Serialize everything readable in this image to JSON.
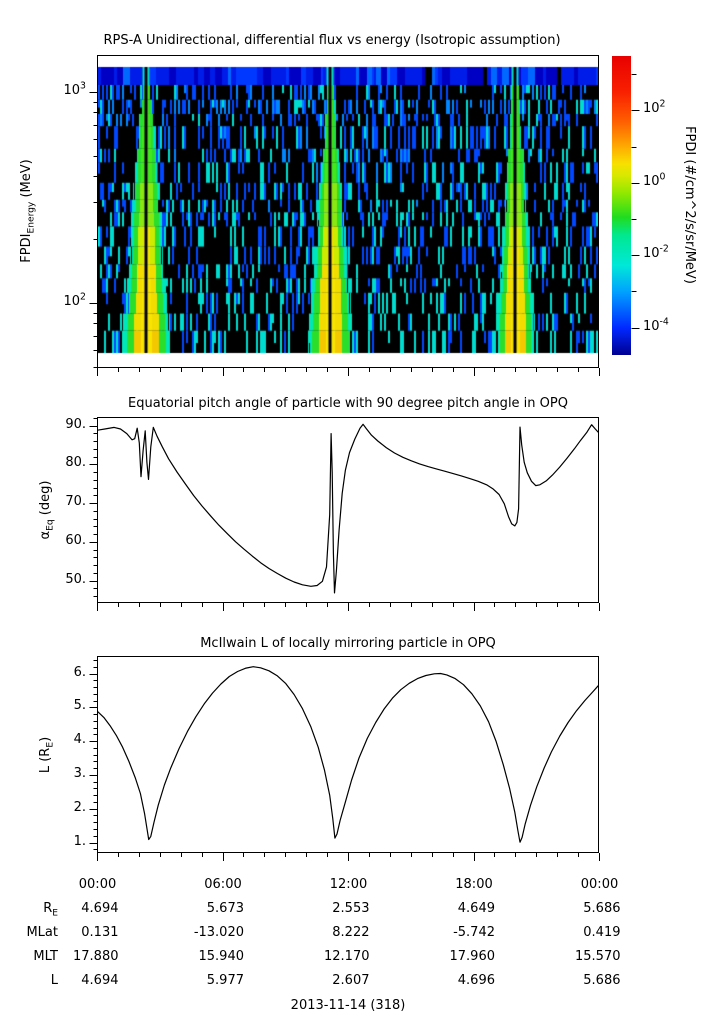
{
  "figure": {
    "date_caption": "2013-11-14 (318)"
  },
  "colors": {
    "background": "#ffffff",
    "axis": "#000000",
    "curve": "#000000",
    "spectrogram_background": "#000000",
    "speckle_palette": [
      "#0047ff",
      "#0086ff",
      "#00ddd0"
    ],
    "blue_band_palette": [
      "#0000c4",
      "#001ce8",
      "#0038ff",
      "#0068ff"
    ],
    "plume_core_by_depth": [
      "#44e61e",
      "#8ae812",
      "#cdeb00",
      "#f2dc00",
      "#f4c800"
    ],
    "plume_mid": "#2ade2a",
    "plume_fringe": "#00e6bb",
    "colorbar_stops_bottom_to_top": [
      "#000090",
      "#0028ff",
      "#00a0ff",
      "#00e8d8",
      "#00e890",
      "#20dc20",
      "#90e800",
      "#d8e800",
      "#f8e000",
      "#ffa800",
      "#ff6000",
      "#f82000",
      "#e80000"
    ]
  },
  "labels": {
    "top_ylabel_parts": [
      {
        "t": "FPDI"
      },
      {
        "sub": "Energy"
      },
      {
        "t": " (MeV)"
      }
    ],
    "mid_ylabel_parts": [
      {
        "t": "α"
      },
      {
        "sub": "Eq"
      },
      {
        "t": " (deg)"
      }
    ],
    "bot_ylabel_parts": [
      {
        "t": "L (R"
      },
      {
        "sub": "E"
      },
      {
        "t": ")"
      }
    ],
    "cbar_label": "FPDI (#/cm^2/s/sr/MeV)"
  },
  "xaxis": {
    "tick_labels": [
      "00:00",
      "06:00",
      "12:00",
      "18:00",
      "00:00"
    ],
    "tick_hours": [
      0,
      6,
      12,
      18,
      24
    ],
    "minor_every_hours": 1,
    "range_hours": [
      0,
      24
    ]
  },
  "table": {
    "rows": [
      {
        "label_parts": [
          {
            "t": "R"
          },
          {
            "sub": "E"
          }
        ],
        "values": [
          "4.694",
          "5.673",
          "2.553",
          "4.649",
          "5.686"
        ]
      },
      {
        "label_parts": [
          {
            "t": "MLat"
          }
        ],
        "values": [
          "0.131",
          "-13.020",
          "8.222",
          "-5.742",
          "0.419"
        ]
      },
      {
        "label_parts": [
          {
            "t": "MLT"
          }
        ],
        "values": [
          "17.880",
          "15.940",
          "12.170",
          "17.960",
          "15.570"
        ]
      },
      {
        "label_parts": [
          {
            "t": "L"
          }
        ],
        "values": [
          "4.694",
          "5.977",
          "2.607",
          "4.696",
          "5.686"
        ]
      }
    ],
    "caption": "2013-11-14 (318)"
  },
  "chart_data": [
    {
      "type": "heatmap",
      "title": "RPS-A Unidirectional, differential flux vs energy (Isotropic assumption)",
      "ylabel": "FPDI_Energy (MeV)",
      "yscale": "log",
      "ylim_MeV": [
        49,
        1500
      ],
      "ytick_values": [
        1000,
        100
      ],
      "ytick_labels": [
        "10^3",
        "10^2"
      ],
      "xlim_hours": [
        0,
        24
      ],
      "colorbar": {
        "label": "FPDI (#/cm^2/s/sr/MeV)",
        "tick_exponents": [
          3,
          2,
          1,
          0,
          -1,
          -2,
          -3,
          -4
        ],
        "labeled_exponents": [
          2,
          0,
          -2,
          -4
        ],
        "tick_labels": [
          "10^2",
          "10^0",
          "10^-2",
          "10^-4"
        ],
        "value_range_exponents": [
          -4.8,
          3.5
        ]
      },
      "features": {
        "description": "black background with sparse vertical blue/cyan dashes; three bright flux plumes widening toward low energy with yellow cores and a narrow black data-gap at each center (perigee passes); solid blue band at top energies; white bands at extreme top and bottom energies",
        "top_white_band_energy_MeV": [
          1250,
          1500
        ],
        "blue_band_energy_MeV": [
          1000,
          1250
        ],
        "bottom_white_band_energy_MeV": [
          49,
          58
        ],
        "plume_centers_hours": [
          2.3,
          11.15,
          20.0
        ],
        "plume_halfwidth_hours_top": [
          0.21,
          0.14,
          0.17
        ],
        "plume_halfwidth_hours_bottom": [
          1.2,
          1.15,
          1.0
        ],
        "energy_rows": 16
      }
    },
    {
      "type": "line",
      "title": "Equatorial pitch angle of particle with 90 degree pitch angle in OPQ",
      "ylabel": "α_Eq (deg)",
      "ylim": [
        43.5,
        92
      ],
      "yticks": [
        90,
        80,
        70,
        60,
        50
      ],
      "ytick_labels": [
        "90.",
        "80.",
        "70.",
        "60.",
        "50."
      ],
      "ytick_minor_step": 2,
      "points": [
        [
          0,
          88.8
        ],
        [
          0.35,
          89.1
        ],
        [
          0.8,
          89.5
        ],
        [
          1.1,
          89.1
        ],
        [
          1.4,
          87.9
        ],
        [
          1.65,
          86.3
        ],
        [
          1.78,
          86.6
        ],
        [
          1.9,
          89.3
        ],
        [
          2.0,
          85.5
        ],
        [
          2.08,
          76.8
        ],
        [
          2.18,
          83.5
        ],
        [
          2.28,
          88.6
        ],
        [
          2.36,
          80.5
        ],
        [
          2.44,
          76.1
        ],
        [
          2.55,
          84.5
        ],
        [
          2.67,
          89.5
        ],
        [
          2.85,
          87.2
        ],
        [
          3.1,
          84.5
        ],
        [
          3.4,
          81.4
        ],
        [
          3.8,
          78.0
        ],
        [
          4.2,
          74.9
        ],
        [
          4.6,
          71.9
        ],
        [
          5.0,
          69.2
        ],
        [
          5.4,
          66.7
        ],
        [
          5.8,
          64.3
        ],
        [
          6.2,
          62.1
        ],
        [
          6.6,
          60.0
        ],
        [
          7.0,
          58.1
        ],
        [
          7.4,
          56.3
        ],
        [
          7.8,
          54.6
        ],
        [
          8.2,
          53.1
        ],
        [
          8.6,
          51.8
        ],
        [
          9.0,
          50.6
        ],
        [
          9.4,
          49.6
        ],
        [
          9.8,
          48.9
        ],
        [
          10.2,
          48.5
        ],
        [
          10.5,
          48.7
        ],
        [
          10.75,
          49.8
        ],
        [
          10.95,
          53.5
        ],
        [
          11.1,
          67
        ],
        [
          11.17,
          87.9
        ],
        [
          11.22,
          78
        ],
        [
          11.28,
          57
        ],
        [
          11.33,
          46.8
        ],
        [
          11.42,
          52.5
        ],
        [
          11.55,
          63
        ],
        [
          11.7,
          72.5
        ],
        [
          11.85,
          78.5
        ],
        [
          12.05,
          83
        ],
        [
          12.3,
          86.5
        ],
        [
          12.55,
          89.3
        ],
        [
          12.7,
          90.3
        ],
        [
          12.85,
          89.2
        ],
        [
          13.1,
          87.5
        ],
        [
          13.4,
          86.0
        ],
        [
          13.8,
          84.3
        ],
        [
          14.2,
          82.9
        ],
        [
          14.6,
          81.8
        ],
        [
          15.0,
          80.9
        ],
        [
          15.4,
          80.1
        ],
        [
          15.8,
          79.4
        ],
        [
          16.2,
          78.8
        ],
        [
          16.6,
          78.2
        ],
        [
          17.0,
          77.6
        ],
        [
          17.4,
          77.0
        ],
        [
          17.8,
          76.3
        ],
        [
          18.2,
          75.6
        ],
        [
          18.6,
          74.7
        ],
        [
          18.9,
          73.7
        ],
        [
          19.2,
          72.2
        ],
        [
          19.45,
          69.8
        ],
        [
          19.65,
          66.5
        ],
        [
          19.8,
          64.6
        ],
        [
          19.95,
          64.1
        ],
        [
          20.05,
          65.0
        ],
        [
          20.13,
          68.5
        ],
        [
          20.2,
          89.6
        ],
        [
          20.28,
          85
        ],
        [
          20.4,
          80.5
        ],
        [
          20.55,
          77.8
        ],
        [
          20.75,
          75.6
        ],
        [
          20.95,
          74.5
        ],
        [
          21.15,
          74.7
        ],
        [
          21.45,
          75.7
        ],
        [
          21.75,
          77.2
        ],
        [
          22.1,
          79.3
        ],
        [
          22.45,
          81.6
        ],
        [
          22.8,
          84.0
        ],
        [
          23.1,
          86.2
        ],
        [
          23.4,
          88.3
        ],
        [
          23.62,
          90.2
        ],
        [
          23.8,
          89.1
        ],
        [
          24,
          87.9
        ]
      ]
    },
    {
      "type": "line",
      "title": "McIlwain L of locally mirroring particle in OPQ",
      "ylabel": "L (R_E)",
      "ylim": [
        0.68,
        6.5
      ],
      "yticks": [
        6,
        5,
        4,
        3,
        2,
        1
      ],
      "ytick_labels": [
        "6.",
        "5.",
        "4.",
        "3.",
        "2.",
        "1."
      ],
      "ytick_minor_step": 0.2,
      "points": [
        [
          0,
          4.88
        ],
        [
          0.3,
          4.7
        ],
        [
          0.6,
          4.46
        ],
        [
          0.9,
          4.17
        ],
        [
          1.2,
          3.82
        ],
        [
          1.5,
          3.4
        ],
        [
          1.8,
          2.92
        ],
        [
          2.05,
          2.45
        ],
        [
          2.25,
          1.85
        ],
        [
          2.38,
          1.35
        ],
        [
          2.45,
          1.09
        ],
        [
          2.55,
          1.18
        ],
        [
          2.7,
          1.6
        ],
        [
          2.9,
          2.1
        ],
        [
          3.2,
          2.7
        ],
        [
          3.5,
          3.2
        ],
        [
          3.9,
          3.78
        ],
        [
          4.3,
          4.28
        ],
        [
          4.7,
          4.72
        ],
        [
          5.1,
          5.1
        ],
        [
          5.5,
          5.42
        ],
        [
          5.9,
          5.69
        ],
        [
          6.3,
          5.91
        ],
        [
          6.7,
          6.06
        ],
        [
          7.1,
          6.16
        ],
        [
          7.45,
          6.2
        ],
        [
          7.8,
          6.17
        ],
        [
          8.2,
          6.08
        ],
        [
          8.6,
          5.93
        ],
        [
          9.0,
          5.7
        ],
        [
          9.4,
          5.38
        ],
        [
          9.8,
          4.96
        ],
        [
          10.2,
          4.42
        ],
        [
          10.55,
          3.82
        ],
        [
          10.85,
          3.15
        ],
        [
          11.1,
          2.4
        ],
        [
          11.25,
          1.7
        ],
        [
          11.35,
          1.13
        ],
        [
          11.45,
          1.25
        ],
        [
          11.6,
          1.65
        ],
        [
          11.85,
          2.2
        ],
        [
          12.15,
          2.85
        ],
        [
          12.5,
          3.5
        ],
        [
          12.9,
          4.08
        ],
        [
          13.3,
          4.55
        ],
        [
          13.7,
          4.95
        ],
        [
          14.1,
          5.27
        ],
        [
          14.5,
          5.52
        ],
        [
          14.9,
          5.71
        ],
        [
          15.3,
          5.85
        ],
        [
          15.7,
          5.94
        ],
        [
          16.1,
          5.99
        ],
        [
          16.4,
          6.0
        ],
        [
          16.7,
          5.96
        ],
        [
          17.1,
          5.85
        ],
        [
          17.5,
          5.67
        ],
        [
          17.9,
          5.4
        ],
        [
          18.3,
          5.04
        ],
        [
          18.7,
          4.57
        ],
        [
          19.05,
          4.0
        ],
        [
          19.4,
          3.3
        ],
        [
          19.7,
          2.6
        ],
        [
          19.95,
          1.9
        ],
        [
          20.1,
          1.35
        ],
        [
          20.2,
          1.01
        ],
        [
          20.3,
          1.15
        ],
        [
          20.45,
          1.55
        ],
        [
          20.7,
          2.1
        ],
        [
          21.0,
          2.65
        ],
        [
          21.35,
          3.2
        ],
        [
          21.7,
          3.68
        ],
        [
          22.1,
          4.15
        ],
        [
          22.5,
          4.55
        ],
        [
          22.9,
          4.9
        ],
        [
          23.3,
          5.2
        ],
        [
          23.7,
          5.47
        ],
        [
          24,
          5.68
        ]
      ]
    }
  ]
}
